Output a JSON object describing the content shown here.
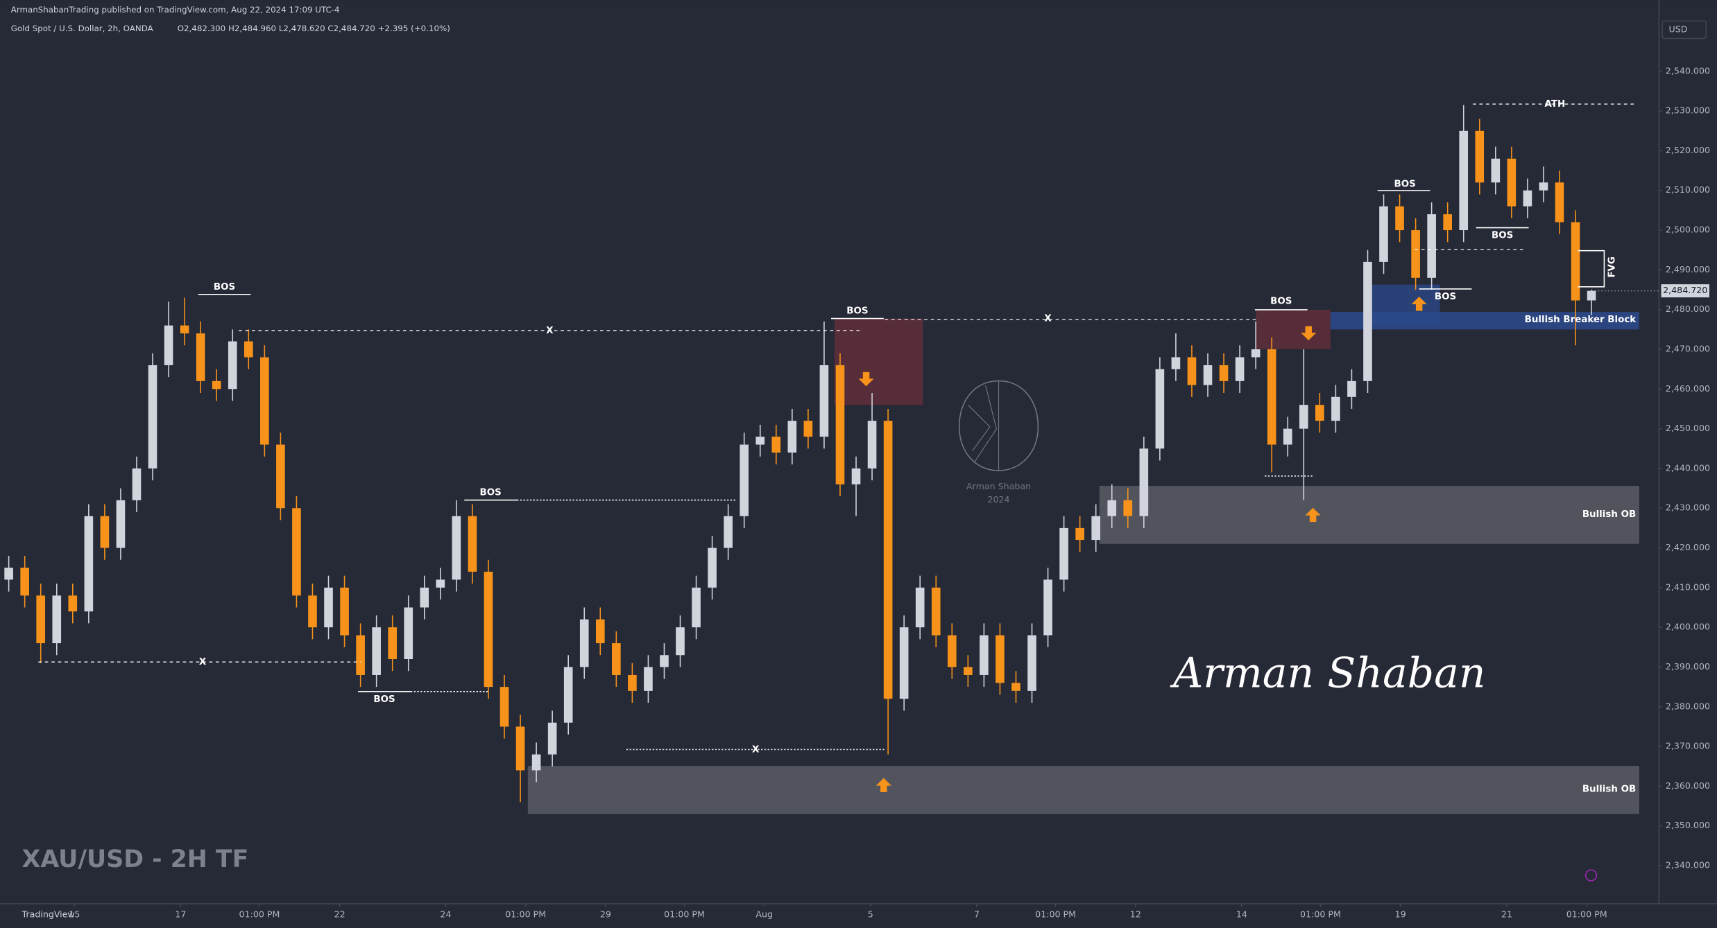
{
  "header": {
    "publisher": "ArmanShabanTrading published on TradingView.com, Aug 22, 2024 17:09 UTC-4",
    "symbol": "Gold Spot / U.S. Dollar, 2h, OANDA",
    "ohlc": "O2,482.300  H2,484.960  L2,478.620  C2,484.720  +2.395 (+0.10%)"
  },
  "chart_data": {
    "type": "candlestick",
    "currency": "USD",
    "last_label": "2,484.720",
    "up_color": "#d1d4dc",
    "down_color": "#f7931a",
    "open": [
      2412,
      2415,
      2408,
      2396,
      2408,
      2404,
      2428,
      2420,
      2432,
      2440,
      2466,
      2476,
      2474,
      2462,
      2460,
      2472,
      2468,
      2446,
      2430,
      2408,
      2400,
      2410,
      2398,
      2388,
      2400,
      2392,
      2405,
      2410,
      2412,
      2428,
      2414,
      2385,
      2375,
      2364,
      2368,
      2376,
      2390,
      2402,
      2396,
      2388,
      2384,
      2390,
      2393,
      2400,
      2410,
      2420,
      2428,
      2446,
      2448,
      2444,
      2452,
      2448,
      2466,
      2436,
      2440,
      2452,
      2382,
      2400,
      2410,
      2398,
      2390,
      2388,
      2398,
      2386,
      2384,
      2398,
      2412,
      2425,
      2422,
      2428,
      2432,
      2428,
      2445,
      2465,
      2468,
      2461,
      2466,
      2462,
      2468,
      2470,
      2446,
      2450,
      2456,
      2452,
      2458,
      2462,
      2492,
      2506,
      2500,
      2488,
      2504,
      2500,
      2525,
      2512,
      2518,
      2506,
      2510,
      2512,
      2502,
      2482.3
    ],
    "high": [
      2418,
      2418,
      2411,
      2411,
      2411,
      2431,
      2431,
      2435,
      2443,
      2469,
      2482,
      2483,
      2477,
      2465,
      2475,
      2475,
      2471,
      2449,
      2433,
      2411,
      2413,
      2413,
      2401,
      2403,
      2403,
      2408,
      2413,
      2415,
      2432,
      2431,
      2417,
      2388,
      2378,
      2371,
      2379,
      2393,
      2405,
      2405,
      2399,
      2391,
      2393,
      2396,
      2403,
      2413,
      2423,
      2431,
      2449,
      2451,
      2451,
      2455,
      2455,
      2477,
      2469,
      2443,
      2459,
      2455,
      2403,
      2413,
      2413,
      2401,
      2393,
      2401,
      2401,
      2389,
      2401,
      2415,
      2428,
      2428,
      2431,
      2436,
      2435,
      2448,
      2468,
      2474,
      2471,
      2469,
      2469,
      2471,
      2477,
      2473,
      2453,
      2470,
      2459,
      2461,
      2465,
      2495,
      2509,
      2509,
      2503,
      2507,
      2507,
      2531.5,
      2528,
      2521,
      2521,
      2513,
      2516,
      2515,
      2505,
      2484.96
    ],
    "low": [
      2409,
      2405,
      2391,
      2393,
      2401,
      2401,
      2417,
      2417,
      2429,
      2437,
      2463,
      2471,
      2459,
      2457,
      2457,
      2465,
      2443,
      2427,
      2405,
      2397,
      2397,
      2395,
      2385,
      2385,
      2389,
      2389,
      2402,
      2407,
      2409,
      2411,
      2382,
      2372,
      2356,
      2361,
      2365,
      2373,
      2387,
      2393,
      2385,
      2381,
      2381,
      2387,
      2390,
      2397,
      2407,
      2417,
      2425,
      2443,
      2441,
      2441,
      2445,
      2445,
      2433,
      2428,
      2437,
      2368,
      2379,
      2397,
      2395,
      2387,
      2385,
      2385,
      2383,
      2381,
      2381,
      2395,
      2409,
      2419,
      2419,
      2425,
      2425,
      2425,
      2442,
      2462,
      2458,
      2458,
      2459,
      2459,
      2465,
      2439,
      2443,
      2432,
      2449,
      2449,
      2455,
      2459,
      2489,
      2497,
      2485,
      2485,
      2497,
      2497,
      2509,
      2509,
      2503,
      2503,
      2507,
      2499,
      2471,
      2478.62
    ],
    "close": [
      2415,
      2408,
      2396,
      2408,
      2404,
      2428,
      2420,
      2432,
      2440,
      2466,
      2476,
      2474,
      2462,
      2460,
      2472,
      2468,
      2446,
      2430,
      2408,
      2400,
      2410,
      2398,
      2388,
      2400,
      2392,
      2405,
      2410,
      2412,
      2428,
      2414,
      2385,
      2375,
      2364,
      2368,
      2376,
      2390,
      2402,
      2396,
      2388,
      2384,
      2390,
      2393,
      2400,
      2410,
      2420,
      2428,
      2446,
      2448,
      2444,
      2452,
      2448,
      2466,
      2436,
      2440,
      2452,
      2382,
      2400,
      2410,
      2398,
      2390,
      2388,
      2398,
      2386,
      2384,
      2398,
      2412,
      2425,
      2422,
      2428,
      2432,
      2428,
      2445,
      2465,
      2468,
      2461,
      2466,
      2462,
      2468,
      2470,
      2446,
      2450,
      2456,
      2452,
      2458,
      2462,
      2492,
      2506,
      2500,
      2488,
      2504,
      2500,
      2525,
      2512,
      2518,
      2506,
      2510,
      2512,
      2502,
      2482.3,
      2484.72
    ],
    "ylim": [
      2330.4,
      2557.9
    ],
    "yticks": [
      {
        "value": 2340,
        "label": "2,340.000"
      },
      {
        "value": 2350,
        "label": "2,350.000"
      },
      {
        "value": 2360,
        "label": "2,360.000"
      },
      {
        "value": 2370,
        "label": "2,370.000"
      },
      {
        "value": 2380,
        "label": "2,380.000"
      },
      {
        "value": 2390,
        "label": "2,390.000"
      },
      {
        "value": 2400,
        "label": "2,400.000"
      },
      {
        "value": 2410,
        "label": "2,410.000"
      },
      {
        "value": 2420,
        "label": "2,420.000"
      },
      {
        "value": 2430,
        "label": "2,430.000"
      },
      {
        "value": 2440,
        "label": "2,440.000"
      },
      {
        "value": 2450,
        "label": "2,450.000"
      },
      {
        "value": 2460,
        "label": "2,460.000"
      },
      {
        "value": 2470,
        "label": "2,470.000"
      },
      {
        "value": 2480,
        "label": "2,480.000"
      },
      {
        "value": 2490,
        "label": "2,490.000"
      },
      {
        "value": 2500,
        "label": "2,500.000"
      },
      {
        "value": 2510,
        "label": "2,510.000"
      },
      {
        "value": 2520,
        "label": "2,520.000"
      },
      {
        "value": 2530,
        "label": "2,530.000"
      },
      {
        "value": 2540,
        "label": "2,540.000"
      }
    ],
    "xlim": [
      -0.548,
      103.22
    ],
    "xticks": [
      {
        "value": 4.11,
        "label": "15"
      },
      {
        "value": 10.75,
        "label": "17"
      },
      {
        "value": 15.68,
        "label": "01:00 PM"
      },
      {
        "value": 20.7,
        "label": "22"
      },
      {
        "value": 27.33,
        "label": "24"
      },
      {
        "value": 32.33,
        "label": "01:00 PM"
      },
      {
        "value": 37.33,
        "label": "29"
      },
      {
        "value": 42.26,
        "label": "01:00 PM"
      },
      {
        "value": 47.26,
        "label": "Aug"
      },
      {
        "value": 53.9,
        "label": "5"
      },
      {
        "value": 60.55,
        "label": "7"
      },
      {
        "value": 65.48,
        "label": "01:00 PM"
      },
      {
        "value": 70.48,
        "label": "12"
      },
      {
        "value": 77.12,
        "label": "14"
      },
      {
        "value": 82.05,
        "label": "01:00 PM"
      },
      {
        "value": 87.05,
        "label": "19"
      },
      {
        "value": 93.7,
        "label": "21"
      },
      {
        "value": 98.7,
        "label": "01:00 PM"
      }
    ]
  },
  "annotations": {
    "bos": [
      "BOS",
      "BOS",
      "BOS",
      "BOS",
      "BOS",
      "BOS",
      "BOS",
      "BOS"
    ],
    "x_marks": [
      "X",
      "X",
      "X",
      "X"
    ],
    "ath": "ATH",
    "fvg": "FVG",
    "breaker": "Bullish Breaker Block",
    "ob": [
      "Bullish OB",
      "Bullish OB"
    ]
  },
  "watermark": "XAU/USD - 2H TF",
  "signature": "Arman Shaban",
  "logo": {
    "name": "Arman Shaban",
    "year": "2024"
  },
  "footer": "TradingView"
}
